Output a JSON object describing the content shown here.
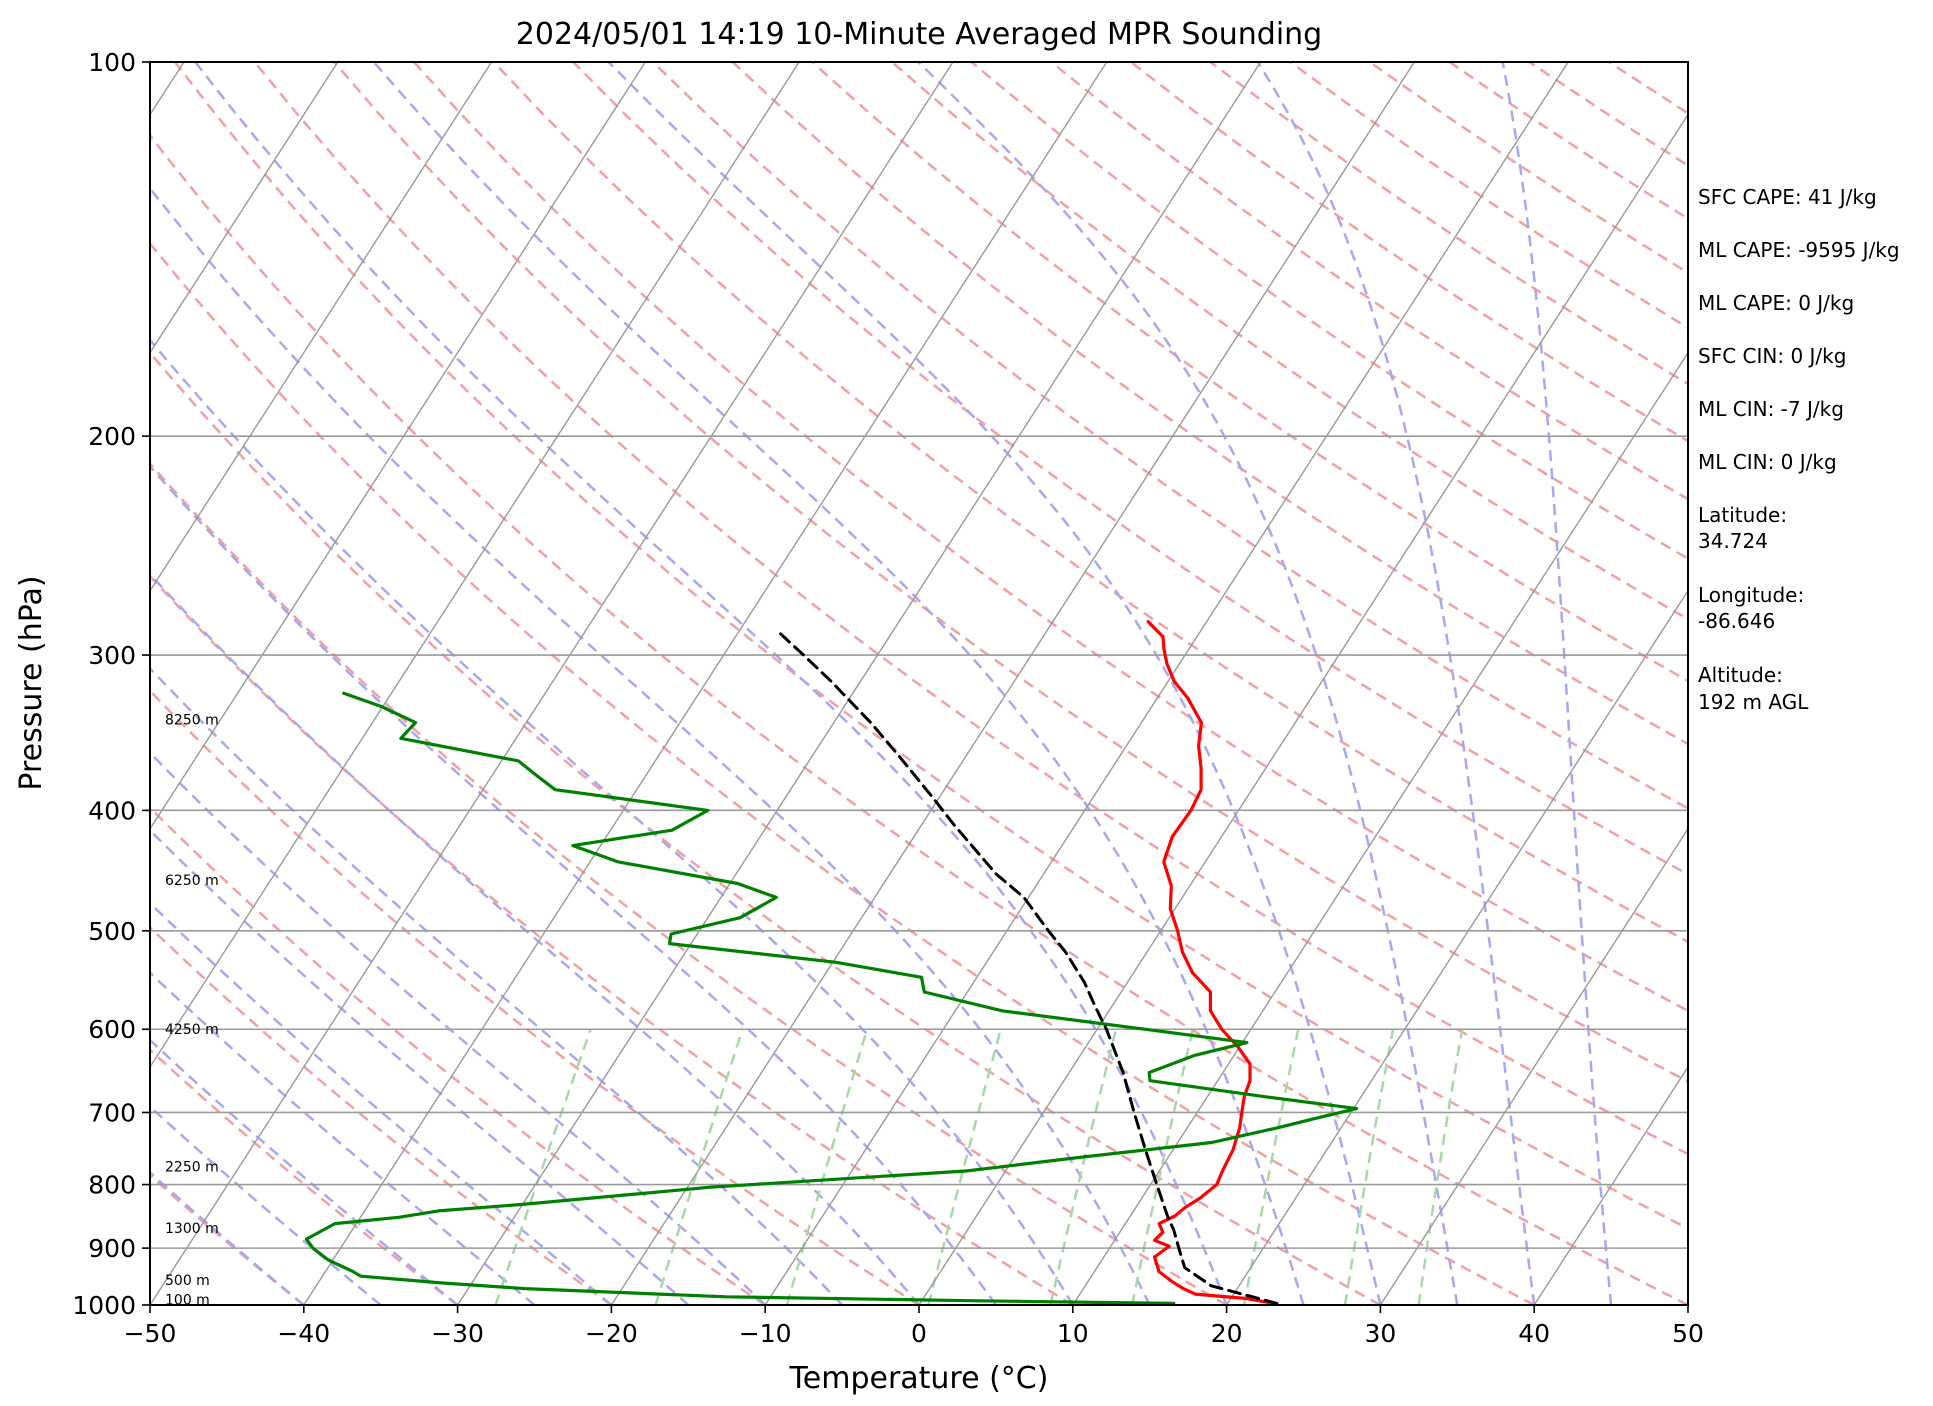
{
  "chart_data": {
    "type": "line",
    "title": "2024/05/01 14:19 10-Minute Averaged MPR Sounding",
    "xlabel": "Temperature (°C)",
    "ylabel": "Pressure (hPa)",
    "xlim": [
      -50,
      50
    ],
    "ylim": [
      1000,
      100
    ],
    "y_scale": "log",
    "skew": true,
    "x_ticks": [
      "−50",
      "−40",
      "−30",
      "−20",
      "−10",
      "0",
      "10",
      "20",
      "30",
      "40",
      "50"
    ],
    "y_ticks": [
      "100",
      "200",
      "300",
      "400",
      "500",
      "600",
      "700",
      "800",
      "900",
      "1000"
    ],
    "height_labels": [
      {
        "text": "100 m",
        "p": 990
      },
      {
        "text": "500 m",
        "p": 955
      },
      {
        "text": "1300 m",
        "p": 867
      },
      {
        "text": "2250 m",
        "p": 774
      },
      {
        "text": "4250 m",
        "p": 600
      },
      {
        "text": "6250 m",
        "p": 455
      },
      {
        "text": "8250 m",
        "p": 338
      }
    ],
    "annotations": [
      "SFC CAPE: 41 J/kg",
      "ML CAPE: -9595 J/kg",
      "ML CAPE: 0 J/kg",
      "SFC CIN: 0 J/kg",
      "ML CIN: -7 J/kg",
      "ML CIN: 0 J/kg",
      "Latitude:",
      "34.724",
      "Longitude:",
      "-86.646",
      "Altitude:",
      "192 m AGL"
    ],
    "colors": {
      "temperature": "#ff0000",
      "dewpoint": "#008000",
      "parcel": "#000000",
      "isotherms": "#9a9a9a",
      "dry_adiabats": "#f2a0a0",
      "moist_adiabats": "#a8a8f2",
      "mixing_ratio": "#a8d8a8"
    },
    "series": [
      {
        "name": "",
        "role": "temperature",
        "points": [
          [
            23,
            997
          ],
          [
            21,
            988
          ],
          [
            17.5,
            980
          ],
          [
            16.5,
            970
          ],
          [
            15.5,
            958
          ],
          [
            14.2,
            940
          ],
          [
            13.3,
            915
          ],
          [
            13.8,
            897
          ],
          [
            12.6,
            887
          ],
          [
            12.8,
            874
          ],
          [
            12.2,
            860
          ],
          [
            12.9,
            848
          ],
          [
            13.2,
            835
          ],
          [
            13.8,
            820
          ],
          [
            14.3,
            800
          ],
          [
            14.1,
            780
          ],
          [
            13.9,
            750
          ],
          [
            13.4,
            720
          ],
          [
            12.9,
            700
          ],
          [
            12.4,
            680
          ],
          [
            12.1,
            660
          ],
          [
            11.4,
            640
          ],
          [
            9.9,
            620
          ],
          [
            8.1,
            600
          ],
          [
            6.6,
            580
          ],
          [
            5.8,
            560
          ],
          [
            3.8,
            540
          ],
          [
            2.3,
            520
          ],
          [
            1.1,
            500
          ],
          [
            -0.3,
            480
          ],
          [
            -1.2,
            460
          ],
          [
            -2.7,
            440
          ],
          [
            -3.2,
            420
          ],
          [
            -3.1,
            400
          ],
          [
            -3.3,
            385
          ],
          [
            -4.2,
            370
          ],
          [
            -5.3,
            355
          ],
          [
            -6.1,
            340
          ],
          [
            -8,
            325
          ],
          [
            -9.6,
            315
          ],
          [
            -10.8,
            305
          ],
          [
            -11.6,
            297
          ],
          [
            -12.2,
            290
          ],
          [
            -13.8,
            282
          ]
        ]
      },
      {
        "name": "",
        "role": "dewpoint",
        "points": [
          [
            16.5,
            997
          ],
          [
            3.1,
            992
          ],
          [
            -12.9,
            985
          ],
          [
            -26.3,
            970
          ],
          [
            -31.9,
            960
          ],
          [
            -37.5,
            948
          ],
          [
            -38.2,
            940
          ],
          [
            -40.3,
            920
          ],
          [
            -41.8,
            900
          ],
          [
            -42.6,
            885
          ],
          [
            -41.4,
            860
          ],
          [
            -37.5,
            850
          ],
          [
            -35.2,
            840
          ],
          [
            -30,
            830
          ],
          [
            -18.5,
            804
          ],
          [
            -2.5,
            780
          ],
          [
            4.5,
            760
          ],
          [
            12.2,
            740
          ],
          [
            15.9,
            720
          ],
          [
            17.9,
            708
          ],
          [
            20.2,
            695
          ],
          [
            13.8,
            680
          ],
          [
            5.6,
            660
          ],
          [
            5.2,
            650
          ],
          [
            6.3,
            640
          ],
          [
            7.4,
            630
          ],
          [
            10.3,
            615
          ],
          [
            3.1,
            600
          ],
          [
            -6.9,
            580
          ],
          [
            -12.8,
            560
          ],
          [
            -13.6,
            545
          ],
          [
            -19.8,
            530
          ],
          [
            -31.4,
            512
          ],
          [
            -31.7,
            503
          ],
          [
            -27.9,
            488
          ],
          [
            -26.4,
            470
          ],
          [
            -29.5,
            458
          ],
          [
            -38.2,
            440
          ],
          [
            -41.8,
            427
          ],
          [
            -36,
            415
          ],
          [
            -34.5,
            400
          ],
          [
            -45.3,
            385
          ],
          [
            -47.1,
            375
          ],
          [
            -48.9,
            365
          ],
          [
            -57.5,
            350
          ],
          [
            -57.2,
            340
          ],
          [
            -60.1,
            330
          ],
          [
            -63.1,
            322
          ]
        ]
      },
      {
        "name": "",
        "role": "parcel",
        "points": [
          [
            23.2,
            997
          ],
          [
            18.2,
            965
          ],
          [
            15.7,
            933
          ],
          [
            14.5,
            900
          ],
          [
            13.4,
            870
          ],
          [
            12.5,
            850
          ],
          [
            10.4,
            800
          ],
          [
            8.2,
            750
          ],
          [
            5.9,
            700
          ],
          [
            3.5,
            650
          ],
          [
            0.6,
            600
          ],
          [
            -1.1,
            575
          ],
          [
            -2.8,
            550
          ],
          [
            -5.3,
            520
          ],
          [
            -7.3,
            500
          ],
          [
            -10.3,
            470
          ],
          [
            -13.1,
            450
          ],
          [
            -18,
            410
          ],
          [
            -20.5,
            390
          ],
          [
            -24.6,
            360
          ],
          [
            -27.6,
            340
          ],
          [
            -31.9,
            315
          ],
          [
            -35,
            299
          ],
          [
            -37.5,
            287
          ]
        ]
      }
    ]
  }
}
